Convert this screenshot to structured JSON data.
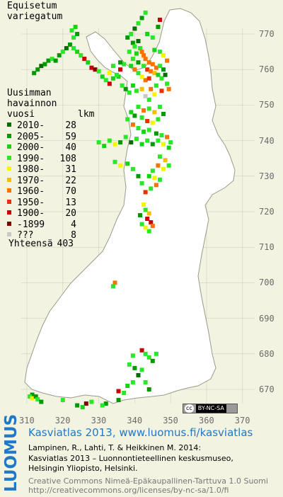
{
  "species": {
    "line1": "Equisetum",
    "line2": "variegatum"
  },
  "legend": {
    "title1": "Uusimman",
    "title2": "havainnon",
    "title3": "vuosi",
    "count_header": "lkm",
    "items": [
      {
        "label": "2010-",
        "count": "28",
        "color": "#006e00"
      },
      {
        "label": "2005-",
        "count": "59",
        "color": "#009a00"
      },
      {
        "label": "2000-",
        "count": "40",
        "color": "#16d316"
      },
      {
        "label": "1990-",
        "count": "108",
        "color": "#28e828"
      },
      {
        "label": "1980-",
        "count": "31",
        "color": "#f5f500"
      },
      {
        "label": "1970-",
        "count": "22",
        "color": "#f5be00"
      },
      {
        "label": "1960-",
        "count": "70",
        "color": "#f57300"
      },
      {
        "label": "1950-",
        "count": "13",
        "color": "#e63200"
      },
      {
        "label": "1900-",
        "count": "20",
        "color": "#c80000"
      },
      {
        "label": "-1899",
        "count": "4",
        "color": "#820000"
      },
      {
        "label": "???",
        "count": "8",
        "color": "#c8c8c8"
      }
    ],
    "total_label": "Yhteensä",
    "total_count": "403"
  },
  "axes": {
    "y_ticks": [
      "770",
      "760",
      "750",
      "740",
      "730",
      "720",
      "710",
      "700",
      "690",
      "680",
      "670"
    ],
    "x_ticks": [
      "310",
      "320",
      "330",
      "340",
      "350",
      "360",
      "370"
    ]
  },
  "map_colors": {
    "land": "#ffffff",
    "background": "#f3f3e2",
    "grid": "#c0c0b0"
  },
  "map_points": [
    {
      "x": 3395,
      "y": 7675,
      "c": 1
    },
    {
      "x": 3400,
      "y": 7665,
      "c": 3
    },
    {
      "x": 3410,
      "y": 7680,
      "c": 0
    },
    {
      "x": 3415,
      "y": 7660,
      "c": 3
    },
    {
      "x": 3420,
      "y": 7650,
      "c": 6
    },
    {
      "x": 3425,
      "y": 7640,
      "c": 6
    },
    {
      "x": 3405,
      "y": 7645,
      "c": 2
    },
    {
      "x": 3395,
      "y": 7630,
      "c": 3
    },
    {
      "x": 3430,
      "y": 7630,
      "c": 6
    },
    {
      "x": 3440,
      "y": 7620,
      "c": 6
    },
    {
      "x": 3450,
      "y": 7615,
      "c": 6
    },
    {
      "x": 3460,
      "y": 7605,
      "c": 6
    },
    {
      "x": 3435,
      "y": 7600,
      "c": 7
    },
    {
      "x": 3445,
      "y": 7595,
      "c": 6
    },
    {
      "x": 3455,
      "y": 7590,
      "c": 5
    },
    {
      "x": 3425,
      "y": 7610,
      "c": 3
    },
    {
      "x": 3410,
      "y": 7620,
      "c": 1
    },
    {
      "x": 3470,
      "y": 7610,
      "c": 3
    },
    {
      "x": 3480,
      "y": 7600,
      "c": 1
    },
    {
      "x": 3465,
      "y": 7585,
      "c": 2
    },
    {
      "x": 3475,
      "y": 7575,
      "c": 3
    },
    {
      "x": 3485,
      "y": 7585,
      "c": 0
    },
    {
      "x": 3430,
      "y": 7570,
      "c": 6
    },
    {
      "x": 3440,
      "y": 7575,
      "c": 7
    },
    {
      "x": 3420,
      "y": 7580,
      "c": 4
    },
    {
      "x": 3410,
      "y": 7590,
      "c": 3
    },
    {
      "x": 3400,
      "y": 7600,
      "c": 6
    },
    {
      "x": 3390,
      "y": 7610,
      "c": 2
    },
    {
      "x": 3385,
      "y": 7650,
      "c": 3
    },
    {
      "x": 3380,
      "y": 7690,
      "c": 1
    },
    {
      "x": 3390,
      "y": 7700,
      "c": 3
    },
    {
      "x": 3400,
      "y": 7715,
      "c": 0
    },
    {
      "x": 3410,
      "y": 7730,
      "c": 3
    },
    {
      "x": 3420,
      "y": 7745,
      "c": 1
    },
    {
      "x": 3430,
      "y": 7760,
      "c": 3
    },
    {
      "x": 3435,
      "y": 7700,
      "c": 2
    },
    {
      "x": 3450,
      "y": 7690,
      "c": 3
    },
    {
      "x": 3465,
      "y": 7720,
      "c": 1
    },
    {
      "x": 3470,
      "y": 7740,
      "c": 8
    },
    {
      "x": 3455,
      "y": 7655,
      "c": 2
    },
    {
      "x": 3470,
      "y": 7650,
      "c": 3
    },
    {
      "x": 3480,
      "y": 7640,
      "c": 4
    },
    {
      "x": 3490,
      "y": 7625,
      "c": 6
    },
    {
      "x": 3490,
      "y": 7560,
      "c": 3
    },
    {
      "x": 3495,
      "y": 7545,
      "c": 6
    },
    {
      "x": 3475,
      "y": 7540,
      "c": 7
    },
    {
      "x": 3460,
      "y": 7555,
      "c": 3
    },
    {
      "x": 3445,
      "y": 7545,
      "c": 6
    },
    {
      "x": 3455,
      "y": 7530,
      "c": 4
    },
    {
      "x": 3440,
      "y": 7515,
      "c": 3
    },
    {
      "x": 3430,
      "y": 7525,
      "c": 10
    },
    {
      "x": 3420,
      "y": 7545,
      "c": 5
    },
    {
      "x": 3405,
      "y": 7540,
      "c": 3
    },
    {
      "x": 3395,
      "y": 7555,
      "c": 2
    },
    {
      "x": 3385,
      "y": 7535,
      "c": 3
    },
    {
      "x": 3375,
      "y": 7545,
      "c": 1
    },
    {
      "x": 3365,
      "y": 7555,
      "c": 3
    },
    {
      "x": 3355,
      "y": 7580,
      "c": 2
    },
    {
      "x": 3360,
      "y": 7600,
      "c": 8
    },
    {
      "x": 3370,
      "y": 7615,
      "c": 3
    },
    {
      "x": 3120,
      "y": 7590,
      "c": 1
    },
    {
      "x": 3130,
      "y": 7600,
      "c": 1
    },
    {
      "x": 3140,
      "y": 7610,
      "c": 0
    },
    {
      "x": 3150,
      "y": 7615,
      "c": 1
    },
    {
      "x": 3160,
      "y": 7625,
      "c": 1
    },
    {
      "x": 3170,
      "y": 7630,
      "c": 3
    },
    {
      "x": 3180,
      "y": 7625,
      "c": 1
    },
    {
      "x": 3190,
      "y": 7640,
      "c": 1
    },
    {
      "x": 3200,
      "y": 7650,
      "c": 3
    },
    {
      "x": 3210,
      "y": 7660,
      "c": 0
    },
    {
      "x": 3220,
      "y": 7670,
      "c": 1
    },
    {
      "x": 3230,
      "y": 7660,
      "c": 3
    },
    {
      "x": 3240,
      "y": 7650,
      "c": 2
    },
    {
      "x": 3250,
      "y": 7640,
      "c": 3
    },
    {
      "x": 3260,
      "y": 7630,
      "c": 8
    },
    {
      "x": 3270,
      "y": 7620,
      "c": 2
    },
    {
      "x": 3230,
      "y": 7690,
      "c": 3
    },
    {
      "x": 3240,
      "y": 7700,
      "c": 1
    },
    {
      "x": 3235,
      "y": 7720,
      "c": 2
    },
    {
      "x": 3225,
      "y": 7710,
      "c": 3
    },
    {
      "x": 3280,
      "y": 7605,
      "c": 8
    },
    {
      "x": 3290,
      "y": 7600,
      "c": 9
    },
    {
      "x": 3300,
      "y": 7595,
      "c": 3
    },
    {
      "x": 3310,
      "y": 7580,
      "c": 2
    },
    {
      "x": 3320,
      "y": 7570,
      "c": 3
    },
    {
      "x": 3330,
      "y": 7560,
      "c": 8
    },
    {
      "x": 3340,
      "y": 7575,
      "c": 2
    },
    {
      "x": 3350,
      "y": 7585,
      "c": 3
    },
    {
      "x": 3360,
      "y": 7620,
      "c": 1
    },
    {
      "x": 3340,
      "y": 7610,
      "c": 3
    },
    {
      "x": 3330,
      "y": 7590,
      "c": 4
    },
    {
      "x": 3410,
      "y": 7495,
      "c": 3
    },
    {
      "x": 3425,
      "y": 7485,
      "c": 6
    },
    {
      "x": 3440,
      "y": 7490,
      "c": 3
    },
    {
      "x": 3455,
      "y": 7480,
      "c": 5
    },
    {
      "x": 3470,
      "y": 7495,
      "c": 3
    },
    {
      "x": 3480,
      "y": 7475,
      "c": 1
    },
    {
      "x": 3465,
      "y": 7460,
      "c": 3
    },
    {
      "x": 3450,
      "y": 7450,
      "c": 4
    },
    {
      "x": 3435,
      "y": 7455,
      "c": 7
    },
    {
      "x": 3420,
      "y": 7465,
      "c": 3
    },
    {
      "x": 3400,
      "y": 7470,
      "c": 1
    },
    {
      "x": 3390,
      "y": 7480,
      "c": 2
    },
    {
      "x": 3380,
      "y": 7460,
      "c": 3
    },
    {
      "x": 3395,
      "y": 7445,
      "c": 6
    },
    {
      "x": 3410,
      "y": 7435,
      "c": 3
    },
    {
      "x": 3425,
      "y": 7425,
      "c": 2
    },
    {
      "x": 3440,
      "y": 7430,
      "c": 3
    },
    {
      "x": 3460,
      "y": 7420,
      "c": 1
    },
    {
      "x": 3475,
      "y": 7415,
      "c": 3
    },
    {
      "x": 3490,
      "y": 7410,
      "c": 6
    },
    {
      "x": 3500,
      "y": 7395,
      "c": 3
    },
    {
      "x": 3495,
      "y": 7380,
      "c": 2
    },
    {
      "x": 3480,
      "y": 7390,
      "c": 4
    },
    {
      "x": 3465,
      "y": 7400,
      "c": 3
    },
    {
      "x": 3450,
      "y": 7390,
      "c": 1
    },
    {
      "x": 3435,
      "y": 7400,
      "c": 3
    },
    {
      "x": 3420,
      "y": 7390,
      "c": 2
    },
    {
      "x": 3405,
      "y": 7405,
      "c": 3
    },
    {
      "x": 3390,
      "y": 7395,
      "c": 0
    },
    {
      "x": 3375,
      "y": 7410,
      "c": 3
    },
    {
      "x": 3360,
      "y": 7395,
      "c": 1
    },
    {
      "x": 3345,
      "y": 7390,
      "c": 4
    },
    {
      "x": 3330,
      "y": 7400,
      "c": 3
    },
    {
      "x": 3315,
      "y": 7385,
      "c": 2
    },
    {
      "x": 3300,
      "y": 7395,
      "c": 3
    },
    {
      "x": 3470,
      "y": 7355,
      "c": 3
    },
    {
      "x": 3485,
      "y": 7345,
      "c": 5
    },
    {
      "x": 3495,
      "y": 7330,
      "c": 3
    },
    {
      "x": 3480,
      "y": 7320,
      "c": 4
    },
    {
      "x": 3465,
      "y": 7330,
      "c": 6
    },
    {
      "x": 3450,
      "y": 7315,
      "c": 3
    },
    {
      "x": 3440,
      "y": 7300,
      "c": 2
    },
    {
      "x": 3455,
      "y": 7295,
      "c": 4
    },
    {
      "x": 3470,
      "y": 7290,
      "c": 3
    },
    {
      "x": 3460,
      "y": 7275,
      "c": 6
    },
    {
      "x": 3445,
      "y": 7265,
      "c": 3
    },
    {
      "x": 3430,
      "y": 7255,
      "c": 7
    },
    {
      "x": 3420,
      "y": 7280,
      "c": 3
    },
    {
      "x": 3410,
      "y": 7300,
      "c": 1
    },
    {
      "x": 3395,
      "y": 7320,
      "c": 3
    },
    {
      "x": 3380,
      "y": 7335,
      "c": 2
    },
    {
      "x": 3360,
      "y": 7330,
      "c": 4
    },
    {
      "x": 3345,
      "y": 7340,
      "c": 3
    },
    {
      "x": 3425,
      "y": 7220,
      "c": 4
    },
    {
      "x": 3430,
      "y": 7205,
      "c": 3
    },
    {
      "x": 3440,
      "y": 7195,
      "c": 5
    },
    {
      "x": 3435,
      "y": 7180,
      "c": 8
    },
    {
      "x": 3445,
      "y": 7170,
      "c": 8
    },
    {
      "x": 3450,
      "y": 7160,
      "c": 6
    },
    {
      "x": 3440,
      "y": 7145,
      "c": 3
    },
    {
      "x": 3430,
      "y": 7155,
      "c": 4
    },
    {
      "x": 3420,
      "y": 7165,
      "c": 3
    },
    {
      "x": 3415,
      "y": 7190,
      "c": 1
    },
    {
      "x": 3345,
      "y": 7000,
      "c": 6
    },
    {
      "x": 3340,
      "y": 6990,
      "c": 3
    },
    {
      "x": 3420,
      "y": 6810,
      "c": 8
    },
    {
      "x": 3430,
      "y": 6800,
      "c": 3
    },
    {
      "x": 3440,
      "y": 6790,
      "c": 3
    },
    {
      "x": 3450,
      "y": 6780,
      "c": 1
    },
    {
      "x": 3460,
      "y": 6800,
      "c": 3
    },
    {
      "x": 3395,
      "y": 6795,
      "c": 3
    },
    {
      "x": 3385,
      "y": 6770,
      "c": 3
    },
    {
      "x": 3400,
      "y": 6760,
      "c": 1
    },
    {
      "x": 3420,
      "y": 6755,
      "c": 3
    },
    {
      "x": 3410,
      "y": 6740,
      "c": 0
    },
    {
      "x": 3395,
      "y": 6720,
      "c": 3
    },
    {
      "x": 3380,
      "y": 6710,
      "c": 2
    },
    {
      "x": 3430,
      "y": 6720,
      "c": 3
    },
    {
      "x": 3440,
      "y": 6700,
      "c": 1
    },
    {
      "x": 3370,
      "y": 6690,
      "c": 3
    },
    {
      "x": 3355,
      "y": 6695,
      "c": 8
    },
    {
      "x": 3355,
      "y": 6670,
      "c": 1
    },
    {
      "x": 3320,
      "y": 6660,
      "c": 1
    },
    {
      "x": 3310,
      "y": 6655,
      "c": 3
    },
    {
      "x": 3280,
      "y": 6665,
      "c": 3
    },
    {
      "x": 3265,
      "y": 6660,
      "c": 9
    },
    {
      "x": 3255,
      "y": 6650,
      "c": 2
    },
    {
      "x": 3240,
      "y": 6655,
      "c": 1
    },
    {
      "x": 3200,
      "y": 6670,
      "c": 3
    },
    {
      "x": 3115,
      "y": 6685,
      "c": 1
    },
    {
      "x": 3108,
      "y": 6680,
      "c": 3
    },
    {
      "x": 3115,
      "y": 6675,
      "c": 4
    },
    {
      "x": 3125,
      "y": 6680,
      "c": 1
    },
    {
      "x": 3130,
      "y": 6672,
      "c": 3
    },
    {
      "x": 3140,
      "y": 6665,
      "c": 1
    }
  ],
  "attribution": {
    "brand": "LUOMUS",
    "title": "Kasviatlas 2013, www.luomus.fi/kasviatlas",
    "line1": "Lampinen, R., Lahti, T. & Heikkinen M. 2014:",
    "line2": "Kasviatlas 2013 – Luonnontieteellinen keskusmuseo,",
    "line3": "Helsingin Yliopisto, Helsinki.",
    "license1": "Creative Commons Nimeä-Epäkaupallinen-Tarttuva 1.0 Suomi",
    "license2": "http://creativecommons.org/licenses/by-nc-sa/1.0/fi",
    "badge_cc": "cc",
    "badge_license": "BY-NC-SA"
  }
}
